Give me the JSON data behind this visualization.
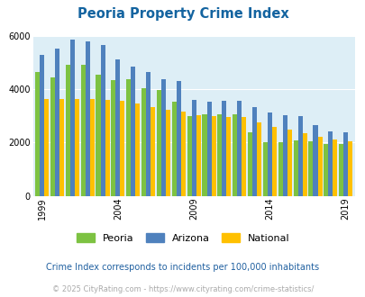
{
  "title": "Peoria Property Crime Index",
  "years": [
    1999,
    2000,
    2001,
    2002,
    2003,
    2004,
    2005,
    2006,
    2007,
    2008,
    2009,
    2010,
    2011,
    2012,
    2013,
    2014,
    2015,
    2016,
    2017,
    2018,
    2019
  ],
  "peoria": [
    4650,
    4450,
    4900,
    4900,
    4550,
    4350,
    4380,
    4030,
    3980,
    3530,
    2990,
    3050,
    3050,
    3060,
    2370,
    2020,
    2010,
    2080,
    2050,
    1950,
    1940
  ],
  "arizona": [
    5270,
    5500,
    5850,
    5800,
    5650,
    5100,
    4850,
    4630,
    4380,
    4290,
    3580,
    3540,
    3550,
    3550,
    3330,
    3140,
    3040,
    2980,
    2660,
    2420,
    2400
  ],
  "national": [
    3640,
    3640,
    3640,
    3620,
    3610,
    3550,
    3460,
    3330,
    3230,
    3170,
    3040,
    2990,
    2960,
    2940,
    2740,
    2600,
    2490,
    2360,
    2230,
    2110,
    2050
  ],
  "bar_colors": {
    "peoria": "#7dc242",
    "arizona": "#4f81bd",
    "national": "#ffc000"
  },
  "bg_color": "#ddeef6",
  "title_color": "#1464a0",
  "ylabel_max": 6000,
  "yticks": [
    0,
    2000,
    4000,
    6000
  ],
  "xtick_years": [
    1999,
    2004,
    2009,
    2014,
    2019
  ],
  "legend_labels": [
    "Peoria",
    "Arizona",
    "National"
  ],
  "footnote1": "Crime Index corresponds to incidents per 100,000 inhabitants",
  "footnote2": "© 2025 CityRating.com - https://www.cityrating.com/crime-statistics/",
  "footnote1_color": "#2060a0",
  "footnote2_color": "#aaaaaa"
}
